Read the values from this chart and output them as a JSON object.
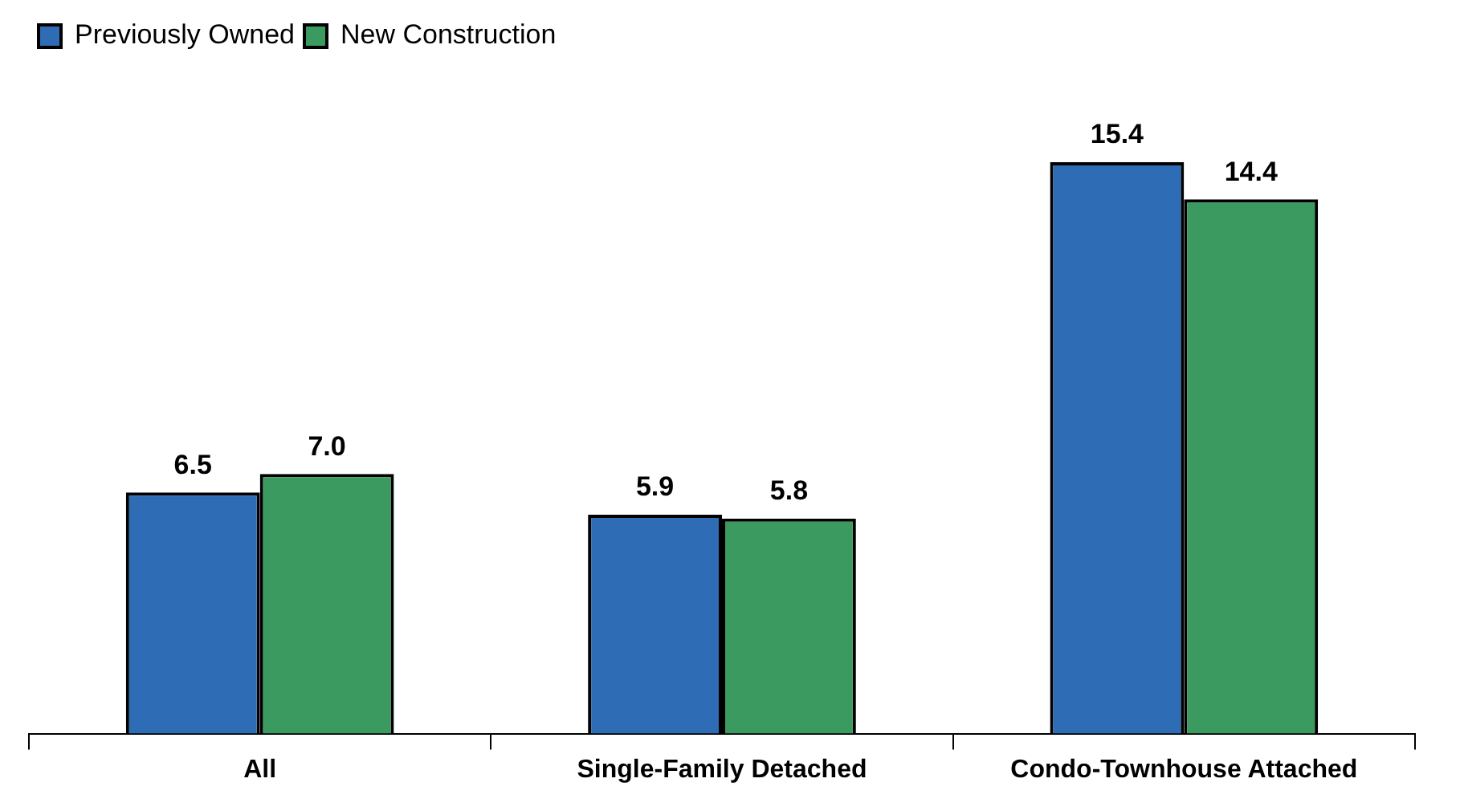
{
  "chart_data": {
    "type": "bar",
    "categories": [
      "All",
      "Single-Family Detached",
      "Condo-Townhouse Attached"
    ],
    "series": [
      {
        "name": "Previously Owned",
        "color": "#2e6db5",
        "values": [
          6.5,
          5.9,
          15.4
        ],
        "value_labels": [
          "6.5",
          "5.9",
          "15.4"
        ]
      },
      {
        "name": "New Construction",
        "color": "#3a9a60",
        "values": [
          7.0,
          5.8,
          14.4
        ],
        "value_labels": [
          "7.0",
          "5.8",
          "14.4"
        ]
      }
    ],
    "legend": "top left"
  }
}
